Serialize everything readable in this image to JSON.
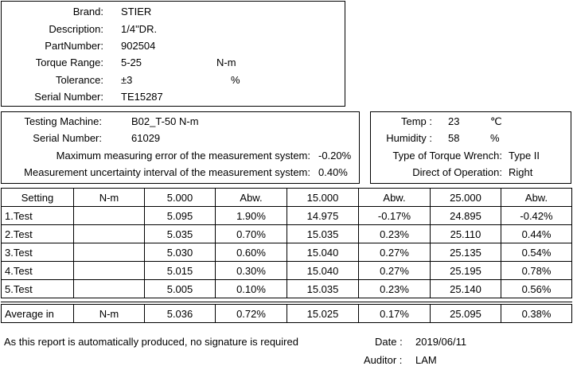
{
  "product": {
    "fields": [
      {
        "label": "Brand:",
        "value": "STIER"
      },
      {
        "label": "Description:",
        "value": "1/4\"DR."
      },
      {
        "label": "PartNumber:",
        "value": "902504"
      },
      {
        "label": "Torque Range:",
        "value": "5-25",
        "unit": "N-m"
      },
      {
        "label": "Tolerance:",
        "value": "±3",
        "unit": "%"
      },
      {
        "label": "Serial Number:",
        "value": "TE15287"
      }
    ]
  },
  "testing": {
    "fields": [
      {
        "label": "Testing Machine:",
        "value": "B02_T-50 N-m"
      },
      {
        "label": "Serial Number:",
        "value": "61029"
      },
      {
        "label": "Maximum measuring error of the measurement system:",
        "value": "-0.20%"
      },
      {
        "label": "Measurement uncertainty interval of the measurement system:",
        "value": "0.40%"
      }
    ]
  },
  "environment": {
    "fields": [
      {
        "label": "Temp :",
        "value": "23",
        "unit": "℃"
      },
      {
        "label": "Humidity :",
        "value": "58",
        "unit": "%"
      },
      {
        "label": "Type of Torque Wrench:",
        "value": "Type II"
      },
      {
        "label": "Direct of Operation:",
        "value": "Right"
      }
    ]
  },
  "table": {
    "header": [
      "Setting",
      "N-m",
      "5.000",
      "Abw.",
      "15.000",
      "Abw.",
      "25.000",
      "Abw."
    ],
    "rows": [
      [
        "1.Test",
        null,
        "5.095",
        "1.90%",
        "14.975",
        "-0.17%",
        "24.895",
        "-0.42%"
      ],
      [
        "2.Test",
        null,
        "5.035",
        "0.70%",
        "15.035",
        "0.23%",
        "25.110",
        "0.44%"
      ],
      [
        "3.Test",
        null,
        "5.030",
        "0.60%",
        "15.040",
        "0.27%",
        "25.135",
        "0.54%"
      ],
      [
        "4.Test",
        null,
        "5.015",
        "0.30%",
        "15.040",
        "0.27%",
        "25.195",
        "0.78%"
      ],
      [
        "5.Test",
        null,
        "5.005",
        "0.10%",
        "15.035",
        "0.23%",
        "25.140",
        "0.56%"
      ]
    ],
    "average": [
      "Average in",
      "N-m",
      "5.036",
      "0.72%",
      "15.025",
      "0.17%",
      "25.095",
      "0.38%"
    ]
  },
  "footer": {
    "note": "As this report is automatically produced, no signature is required",
    "date_label": "Date :",
    "date": "2019/06/11",
    "auditor_label": "Auditor :",
    "auditor": "LAM"
  }
}
